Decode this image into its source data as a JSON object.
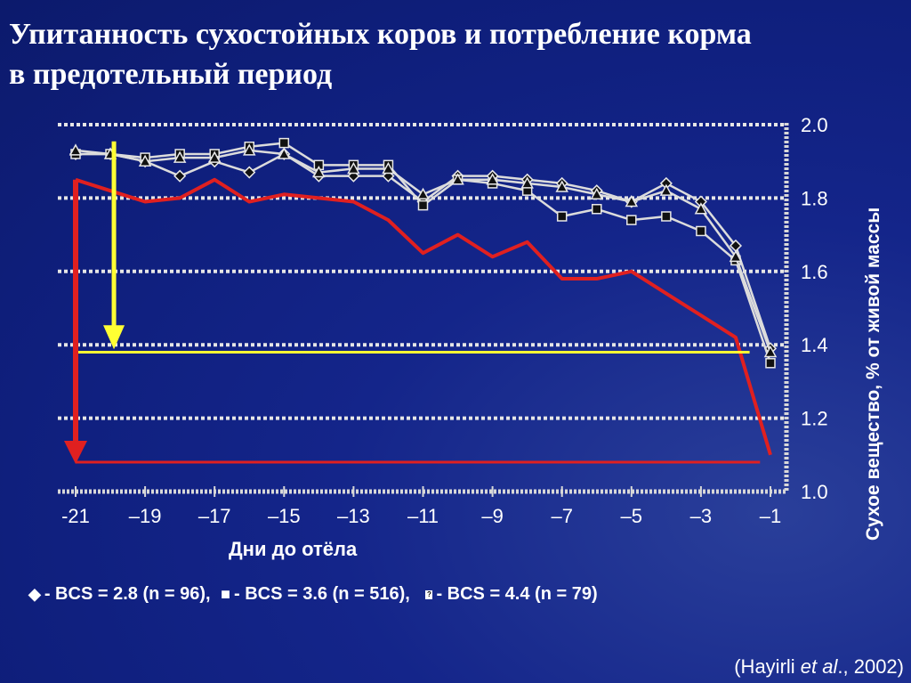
{
  "title": {
    "line1": "Упитанность сухостойных коров и потребление корма",
    "line2": "в предотельный период"
  },
  "chart_data": {
    "type": "line",
    "xlabel": "Дни до отёла",
    "ylabel": "Сухое вещество, % от живой массы",
    "xlim": [
      -21,
      -1
    ],
    "ylim": [
      1.0,
      2.0
    ],
    "x_ticks": [
      "-21",
      "–19",
      "–17",
      "–15",
      "–13",
      "–11",
      "–9",
      "–7",
      "–5",
      "–3",
      "–1"
    ],
    "y_ticks": [
      "2.0",
      "1.8",
      "1.6",
      "1.4",
      "1.2",
      "1.0"
    ],
    "y_tick_values": [
      2.0,
      1.8,
      1.6,
      1.4,
      1.2,
      1.0
    ],
    "grid": "horizontal dotted",
    "x": [
      -21,
      -20,
      -19,
      -18,
      -17,
      -16,
      -15,
      -14,
      -13,
      -12,
      -11,
      -10,
      -9,
      -8,
      -7,
      -6,
      -5,
      -4,
      -3,
      -2,
      -1
    ],
    "series": [
      {
        "name": "BCS = 2.8 (n = 96)",
        "marker": "diamond",
        "color": "#dcdcdc",
        "values": [
          1.92,
          1.92,
          1.9,
          1.86,
          1.9,
          1.87,
          1.92,
          1.86,
          1.86,
          1.86,
          1.79,
          1.86,
          1.86,
          1.85,
          1.84,
          1.82,
          1.79,
          1.84,
          1.79,
          1.67,
          1.39
        ]
      },
      {
        "name": "BCS = 3.6 (n = 516)",
        "marker": "square",
        "color": "#dcdcdc",
        "values": [
          1.92,
          1.92,
          1.91,
          1.92,
          1.92,
          1.94,
          1.95,
          1.89,
          1.89,
          1.89,
          1.78,
          1.85,
          1.84,
          1.82,
          1.75,
          1.77,
          1.74,
          1.75,
          1.71,
          1.63,
          1.35
        ]
      },
      {
        "name": "BCS = 4.4 (n = 79)",
        "marker": "triangle",
        "color": "#dcdcdc",
        "values": [
          1.93,
          1.92,
          1.9,
          1.91,
          1.91,
          1.93,
          1.92,
          1.87,
          1.88,
          1.88,
          1.81,
          1.85,
          1.85,
          1.84,
          1.83,
          1.81,
          1.79,
          1.82,
          1.77,
          1.64,
          1.38
        ]
      },
      {
        "name": "",
        "color": "#e02020",
        "values": [
          1.85,
          1.82,
          1.79,
          1.8,
          1.85,
          1.79,
          1.81,
          1.8,
          1.79,
          1.74,
          1.65,
          1.7,
          1.64,
          1.68,
          1.58,
          1.58,
          1.6,
          1.54,
          1.48,
          1.42,
          1.1
        ]
      }
    ],
    "annotations": {
      "yellow_arrow": {
        "x": -20,
        "y_from": 1.94,
        "y_to": 1.4,
        "color": "#ffff33"
      },
      "yellow_line": {
        "y": 1.38,
        "x_from": -21,
        "x_to": -1.6,
        "color": "#ffff33"
      },
      "red_arrow": {
        "x": -21,
        "y_from": 1.85,
        "y_to": 1.08,
        "color": "#e02020"
      },
      "red_line": {
        "y": 1.08,
        "x_from": -21,
        "x_to": -1.3,
        "color": "#e02020"
      }
    }
  },
  "legend": {
    "item1": "- BCS = 2.8 (n = 96),",
    "item2": "- BCS = 3.6 (n = 516),",
    "item3": "- BCS = 4.4 (n = 79)",
    "marker1_glyph": "◆",
    "marker2_glyph": "■",
    "marker3_glyph": "?"
  },
  "citation": {
    "prefix": "(Hayirli ",
    "italic": "et al",
    "suffix": "., 2002)"
  }
}
